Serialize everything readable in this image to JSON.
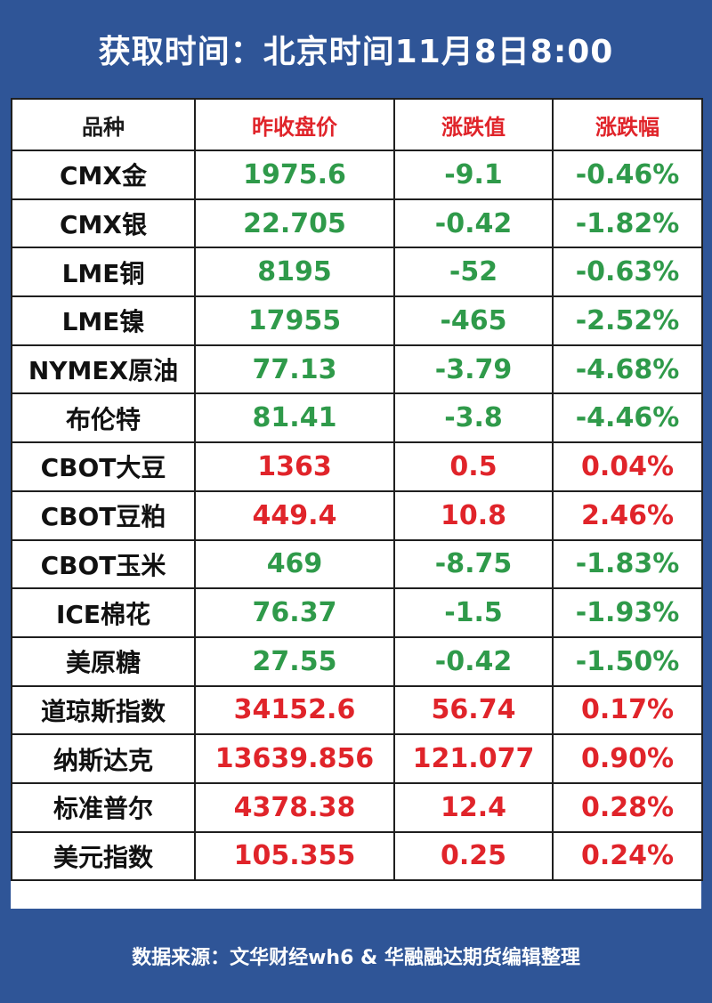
{
  "header": {
    "title": "获取时间：北京时间11月8日8:00"
  },
  "table": {
    "columns": [
      "品种",
      "昨收盘价",
      "涨跌值",
      "涨跌幅"
    ],
    "rows": [
      {
        "name": "CMX金",
        "close": "1975.6",
        "change": "-9.1",
        "pct": "-0.46%",
        "trend": "down"
      },
      {
        "name": "CMX银",
        "close": "22.705",
        "change": "-0.42",
        "pct": "-1.82%",
        "trend": "down"
      },
      {
        "name": "LME铜",
        "close": "8195",
        "change": "-52",
        "pct": "-0.63%",
        "trend": "down"
      },
      {
        "name": "LME镍",
        "close": "17955",
        "change": "-465",
        "pct": "-2.52%",
        "trend": "down"
      },
      {
        "name": "NYMEX原油",
        "close": "77.13",
        "change": "-3.79",
        "pct": "-4.68%",
        "trend": "down"
      },
      {
        "name": "布伦特",
        "close": "81.41",
        "change": "-3.8",
        "pct": "-4.46%",
        "trend": "down"
      },
      {
        "name": "CBOT大豆",
        "close": "1363",
        "change": "0.5",
        "pct": "0.04%",
        "trend": "up"
      },
      {
        "name": "CBOT豆粕",
        "close": "449.4",
        "change": "10.8",
        "pct": "2.46%",
        "trend": "up"
      },
      {
        "name": "CBOT玉米",
        "close": "469",
        "change": "-8.75",
        "pct": "-1.83%",
        "trend": "down"
      },
      {
        "name": "ICE棉花",
        "close": "76.37",
        "change": "-1.5",
        "pct": "-1.93%",
        "trend": "down"
      },
      {
        "name": "美原糖",
        "close": "27.55",
        "change": "-0.42",
        "pct": "-1.50%",
        "trend": "down"
      },
      {
        "name": "道琼斯指数",
        "close": "34152.6",
        "change": "56.74",
        "pct": "0.17%",
        "trend": "up"
      },
      {
        "name": "纳斯达克",
        "close": "13639.856",
        "change": "121.077",
        "pct": "0.90%",
        "trend": "up"
      },
      {
        "name": "标准普尔",
        "close": "4378.38",
        "change": "12.4",
        "pct": "0.28%",
        "trend": "up"
      },
      {
        "name": "美元指数",
        "close": "105.355",
        "change": "0.25",
        "pct": "0.24%",
        "trend": "up"
      }
    ]
  },
  "footer": {
    "source": "数据来源：文华财经wh6 & 华融融达期货编辑整理"
  },
  "colors": {
    "frame": "#2f5597",
    "up": "#e0242a",
    "down": "#2f9a4a"
  }
}
